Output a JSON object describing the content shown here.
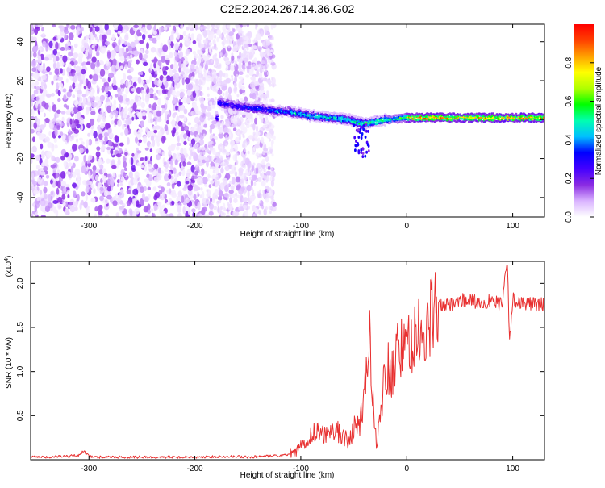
{
  "title": "C2E2.2024.267.14.36.G02",
  "colors": {
    "snr_line": "#e83030",
    "spec_low": "#e6d4fb",
    "spec_mid": "#6a18ee",
    "spec_high": "#ff0000"
  },
  "chart_data": [
    {
      "type": "heatmap",
      "xlabel": "Height of straight line (km)",
      "ylabel": "Frequency (Hz)",
      "xlim": [
        -355,
        130
      ],
      "ylim": [
        -50,
        49
      ],
      "xticks": [
        "-300",
        "-200",
        "-100",
        "0",
        "100"
      ],
      "xtick_values": [
        -300,
        -200,
        -100,
        0,
        100
      ],
      "yticks": [
        "-40",
        "-20",
        "0",
        "20",
        "40"
      ],
      "ytick_values": [
        -40,
        -20,
        0,
        20,
        40
      ],
      "colorbar": {
        "label": "Normalized spectral amplitude",
        "range": [
          0,
          1
        ],
        "ticks": [
          "0.0",
          "0.2",
          "0.4",
          "0.6",
          "0.8"
        ],
        "tick_values": [
          0.0,
          0.2,
          0.4,
          0.6,
          0.8
        ],
        "stops": [
          "#ffffff",
          "#d9b3ff",
          "#8a2be2",
          "#4400ff",
          "#0000ff",
          "#00bfff",
          "#00ffb0",
          "#00ff00",
          "#b0ff00",
          "#ffff00",
          "#ffa000",
          "#ff4000",
          "#ff0000"
        ]
      },
      "features": [
        {
          "name": "broadband noise",
          "x_range": [
            -355,
            -125
          ],
          "f_range": [
            -50,
            49
          ],
          "amplitude": 0.1
        },
        {
          "name": "tone band",
          "points": [
            [
              -178,
              9
            ],
            [
              -160,
              7
            ],
            [
              -130,
              5
            ],
            [
              -110,
              4
            ],
            [
              -90,
              2
            ],
            [
              -70,
              1
            ],
            [
              -55,
              0
            ],
            [
              -40,
              -2
            ],
            [
              -20,
              0
            ],
            [
              0,
              1
            ],
            [
              50,
              1
            ],
            [
              100,
              1
            ],
            [
              130,
              1
            ]
          ]
        }
      ]
    },
    {
      "type": "line",
      "xlabel": "Height of straight line (km)",
      "ylabel": "SNR (10 * v/v)",
      "y_multiplier": "(x10",
      "y_multiplier_exp": "4",
      "xlim": [
        -355,
        130
      ],
      "ylim": [
        0,
        2.25
      ],
      "xticks": [
        "-300",
        "-200",
        "-100",
        "0",
        "100"
      ],
      "xtick_values": [
        -300,
        -200,
        -100,
        0,
        100
      ],
      "yticks": [
        "0.5",
        "1.0",
        "1.5",
        "2.0"
      ],
      "ytick_values": [
        0.5,
        1.0,
        1.5,
        2.0
      ],
      "series": [
        {
          "x": [
            -355,
            -340,
            -320,
            -310,
            -305,
            -300,
            -290,
            -270,
            -250,
            -230,
            -210,
            -190,
            -170,
            -150,
            -130,
            -115,
            -105,
            -100,
            -95,
            -90,
            -85,
            -80,
            -75,
            -70,
            -65,
            -60,
            -55,
            -50,
            -45,
            -40,
            -37,
            -35,
            -33,
            -30,
            -28,
            -25,
            -22,
            -20,
            -15,
            -10,
            -5,
            0,
            5,
            10,
            15,
            20,
            25,
            30,
            40,
            50,
            60,
            70,
            80,
            90,
            95,
            97,
            100,
            110,
            120,
            130
          ],
          "y": [
            0.03,
            0.03,
            0.04,
            0.05,
            0.1,
            0.04,
            0.03,
            0.03,
            0.03,
            0.03,
            0.03,
            0.03,
            0.04,
            0.03,
            0.04,
            0.05,
            0.08,
            0.15,
            0.2,
            0.3,
            0.32,
            0.28,
            0.3,
            0.35,
            0.32,
            0.28,
            0.2,
            0.35,
            0.4,
            0.7,
            1.2,
            1.58,
            0.8,
            0.3,
            0.2,
            0.5,
            0.9,
            1.05,
            1.0,
            1.15,
            1.3,
            1.22,
            1.35,
            1.42,
            1.38,
            1.5,
            1.65,
            1.75,
            1.75,
            1.82,
            1.8,
            1.78,
            1.8,
            1.76,
            2.25,
            1.3,
            1.82,
            1.78,
            1.76,
            1.76
          ]
        }
      ]
    }
  ]
}
